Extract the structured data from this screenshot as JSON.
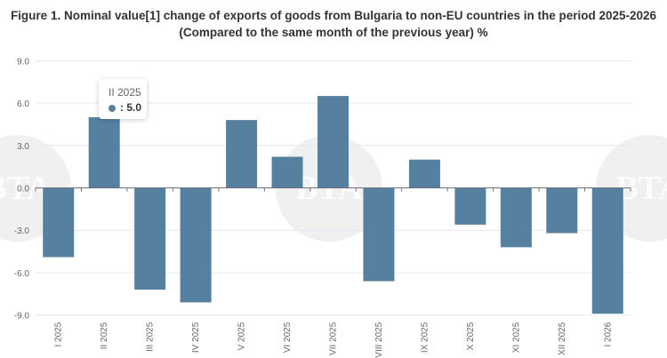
{
  "chart_data": {
    "type": "bar",
    "title": "Figure 1. Nominal value[1] change of exports of goods from Bulgaria to non-EU countries in the period 2025-2026",
    "subtitle": "(Compared to the same month of the previous year) %",
    "categories": [
      "I 2025",
      "II 2025",
      "III 2025",
      "IV 2025",
      "V 2025",
      "VI 2025",
      "VII 2025",
      "VIII 2025",
      "IX 2025",
      "X 2025",
      "XI 2025",
      "XII 2025",
      "I 2026"
    ],
    "values": [
      -4.9,
      5.0,
      -7.2,
      -8.1,
      4.8,
      2.2,
      6.5,
      -6.6,
      2.0,
      -2.6,
      -4.2,
      -3.2,
      -8.9
    ],
    "yticks": [
      "9.0",
      "6.0",
      "3.0",
      "0.0",
      "-3.0",
      "-6.0",
      "-9.0"
    ],
    "ylim": [
      -9,
      9
    ],
    "grid": true,
    "bar_color": "#55809f",
    "tooltip": {
      "label": "II 2025",
      "value": ": 5.0"
    }
  },
  "watermark": "BTA"
}
